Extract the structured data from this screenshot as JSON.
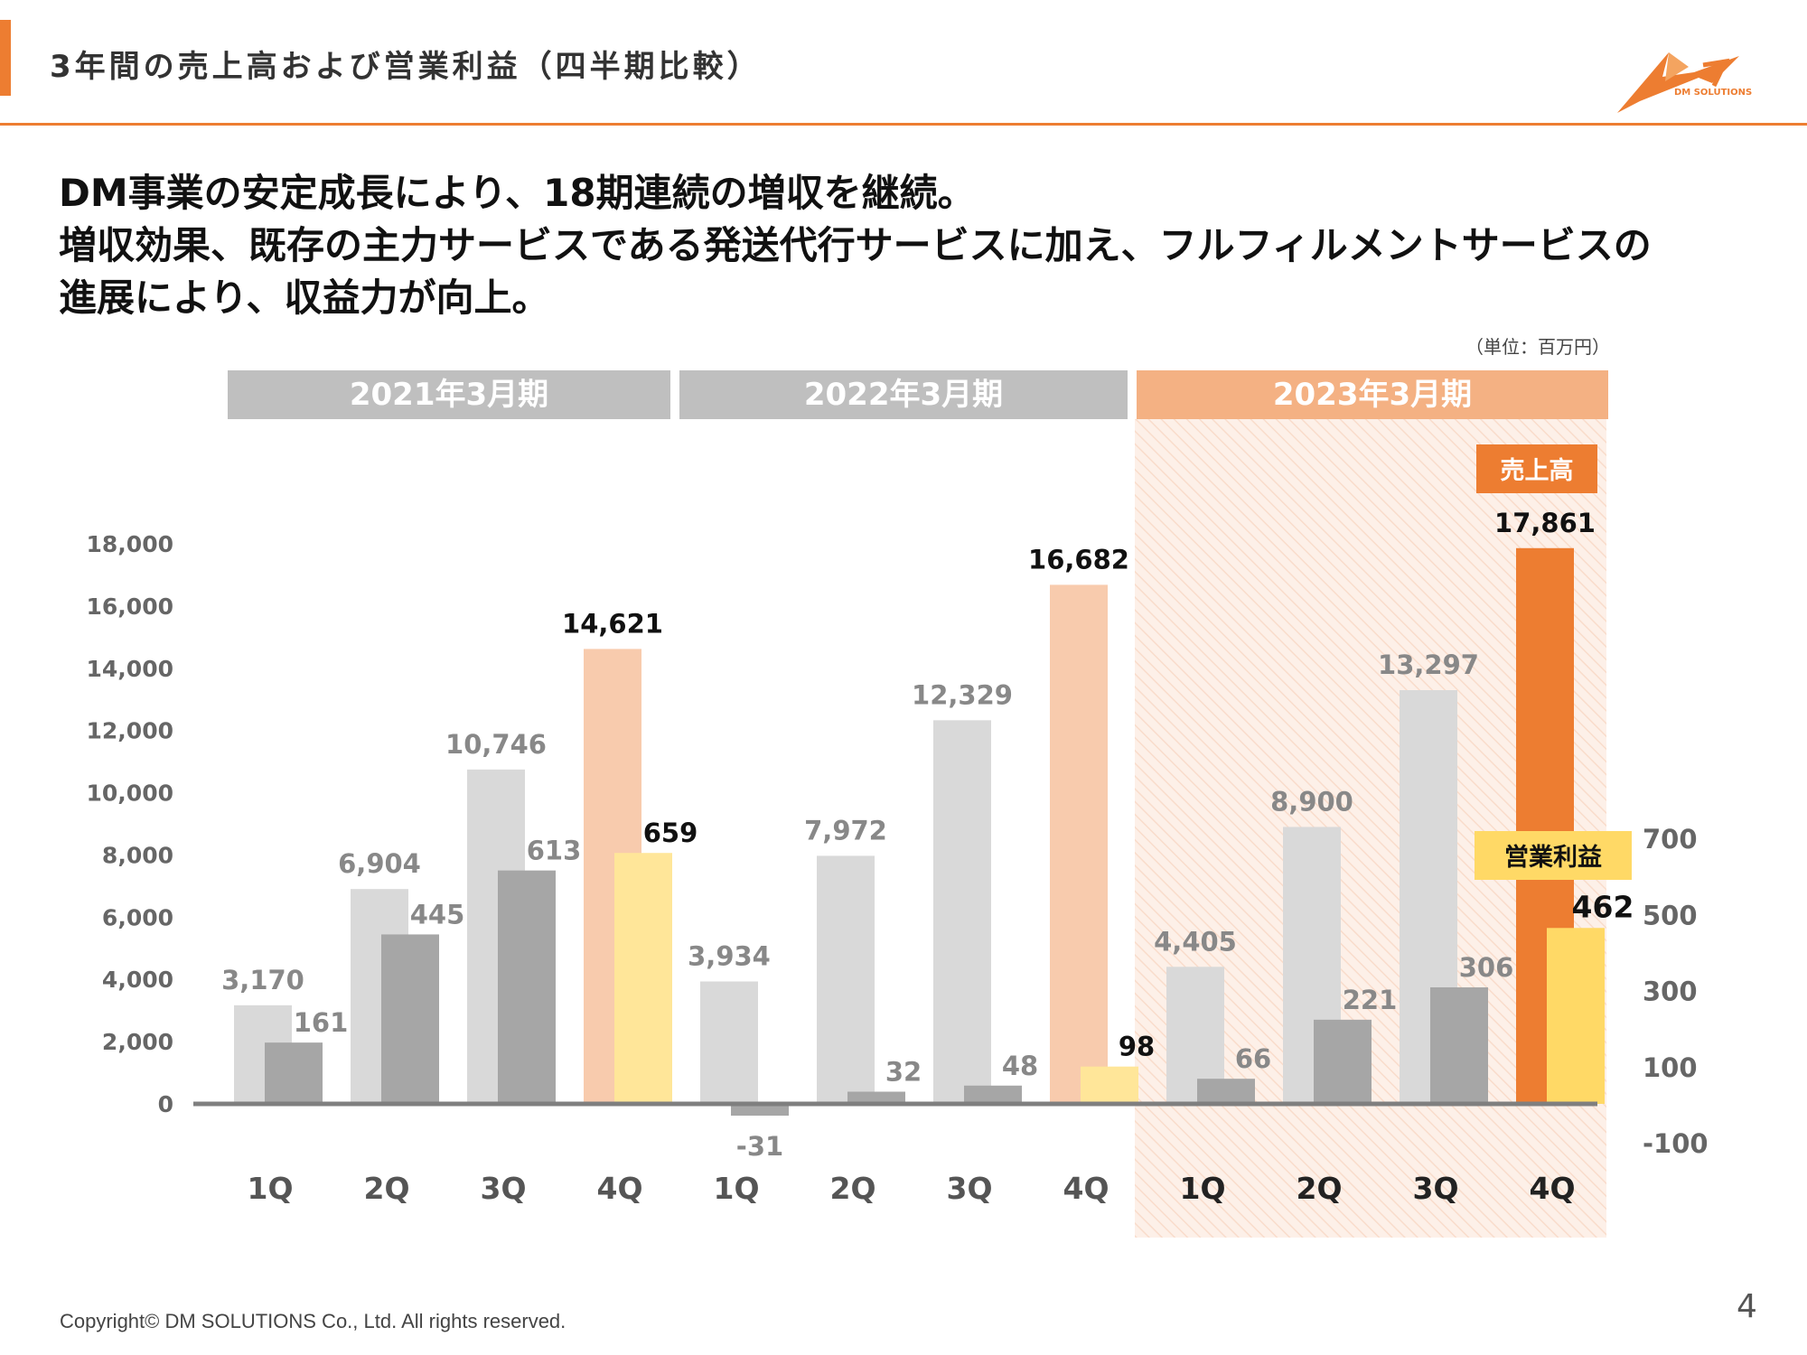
{
  "header": {
    "title": "3年間の売上高および営業利益（四半期比較）",
    "accent_color": "#ED7D31",
    "logo_text": "DM SOLUTIONS"
  },
  "headline": {
    "line1": "DM事業の安定成長により、18期連続の増収を継続。",
    "line2": "増収効果、既存の主力サービスである発送代行サービスに加え、フルフィルメントサービスの",
    "line3": "進展により、収益力が向上。"
  },
  "unit_label": "（単位：百万円）",
  "footer": {
    "copyright": "Copyright© DM SOLUTIONS Co., Ltd. All rights reserved.",
    "page_number": "4"
  },
  "chart_data": {
    "type": "bar",
    "periods": [
      "2021年3月期",
      "2022年3月期",
      "2023年3月期"
    ],
    "categories": [
      "1Q",
      "2Q",
      "3Q",
      "4Q",
      "1Q",
      "2Q",
      "3Q",
      "4Q",
      "1Q",
      "2Q",
      "3Q",
      "4Q"
    ],
    "series": [
      {
        "name": "売上高",
        "axis": "left",
        "values": [
          3170,
          6904,
          10746,
          14621,
          3934,
          7972,
          12329,
          16682,
          4405,
          8900,
          13297,
          17861
        ],
        "labels": [
          "3,170",
          "6,904",
          "10,746",
          "14,621",
          "3,934",
          "7,972",
          "12,329",
          "16,682",
          "4,405",
          "8,900",
          "13,297",
          "17,861"
        ]
      },
      {
        "name": "営業利益",
        "axis": "right",
        "values": [
          161,
          445,
          613,
          659,
          -31,
          32,
          48,
          98,
          66,
          221,
          306,
          462
        ],
        "labels": [
          "161",
          "445",
          "613",
          "659",
          "-31",
          "32",
          "48",
          "98",
          "66",
          "221",
          "306",
          "462"
        ]
      }
    ],
    "y_left": {
      "min": 0,
      "max": 18000,
      "ticks": [
        "0",
        "2,000",
        "4,000",
        "6,000",
        "8,000",
        "10,000",
        "12,000",
        "14,000",
        "16,000",
        "18,000"
      ]
    },
    "y_right": {
      "ticks": [
        "-100",
        "100",
        "300",
        "500",
        "700"
      ]
    },
    "legend": {
      "revenue": "売上高",
      "profit": "営業利益"
    },
    "colors": {
      "revenue": "#D9D9D9",
      "profit": "#A6A6A6",
      "revenue_q4": "#F8CBAD",
      "profit_q4": "#FFE699",
      "revenue_highlight": "#ED7D31",
      "profit_highlight": "#FFD966",
      "period_banner": "#BFBFBF",
      "period_banner_current": "#F4B183",
      "current_period_bg": "#FDF0E8"
    }
  }
}
